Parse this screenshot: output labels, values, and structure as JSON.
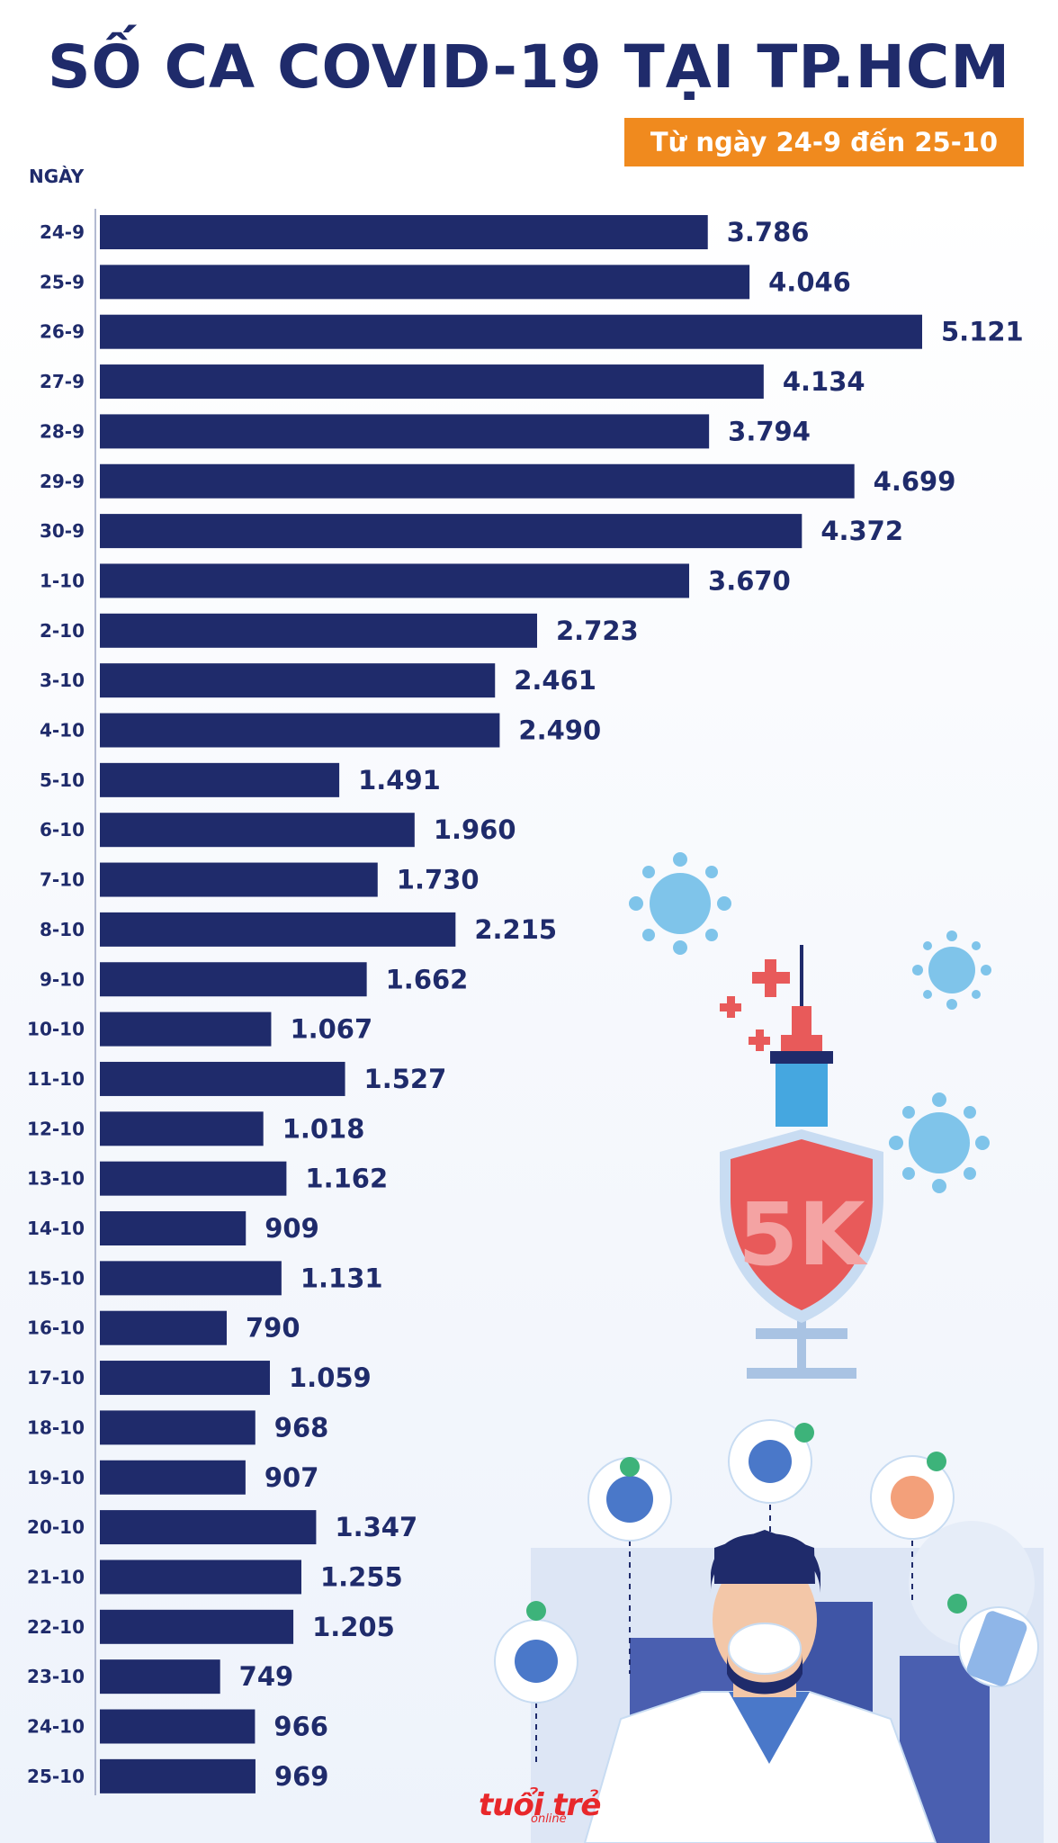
{
  "title": "SỐ CA COVID-19 TẠI TP.HCM",
  "date_range": "Từ ngày 24-9 đến 25-10",
  "logo": {
    "main": "tuổi trẻ",
    "sub": "online"
  },
  "illustration": {
    "shield_text": "5K"
  },
  "colors": {
    "bar": "#1f2b6b",
    "accent": "#f08a1e",
    "brand": "#e8282b"
  },
  "chart_data": {
    "type": "bar",
    "orientation": "horizontal",
    "title": "SỐ CA COVID-19 TẠI TP.HCM",
    "ylabel": "NGÀY",
    "categories": [
      "24-9",
      "25-9",
      "26-9",
      "27-9",
      "28-9",
      "29-9",
      "30-9",
      "1-10",
      "2-10",
      "3-10",
      "4-10",
      "5-10",
      "6-10",
      "7-10",
      "8-10",
      "9-10",
      "10-10",
      "11-10",
      "12-10",
      "13-10",
      "14-10",
      "15-10",
      "16-10",
      "17-10",
      "18-10",
      "19-10",
      "20-10",
      "21-10",
      "22-10",
      "23-10",
      "24-10",
      "25-10"
    ],
    "values": [
      3786,
      4046,
      5121,
      4134,
      3794,
      4699,
      4372,
      3670,
      2723,
      2461,
      2490,
      1491,
      1960,
      1730,
      2215,
      1662,
      1067,
      1527,
      1018,
      1162,
      909,
      1131,
      790,
      1059,
      968,
      907,
      1347,
      1255,
      1205,
      749,
      966,
      969
    ],
    "value_labels": [
      "3.786",
      "4.046",
      "5.121",
      "4.134",
      "3.794",
      "4.699",
      "4.372",
      "3.670",
      "2.723",
      "2.461",
      "2.490",
      "1.491",
      "1.960",
      "1.730",
      "2.215",
      "1.662",
      "1.067",
      "1.527",
      "1.018",
      "1.162",
      "909",
      "1.131",
      "790",
      "1.059",
      "968",
      "907",
      "1.347",
      "1.255",
      "1.205",
      "749",
      "966",
      "969"
    ],
    "xlim": [
      0,
      5121
    ]
  }
}
